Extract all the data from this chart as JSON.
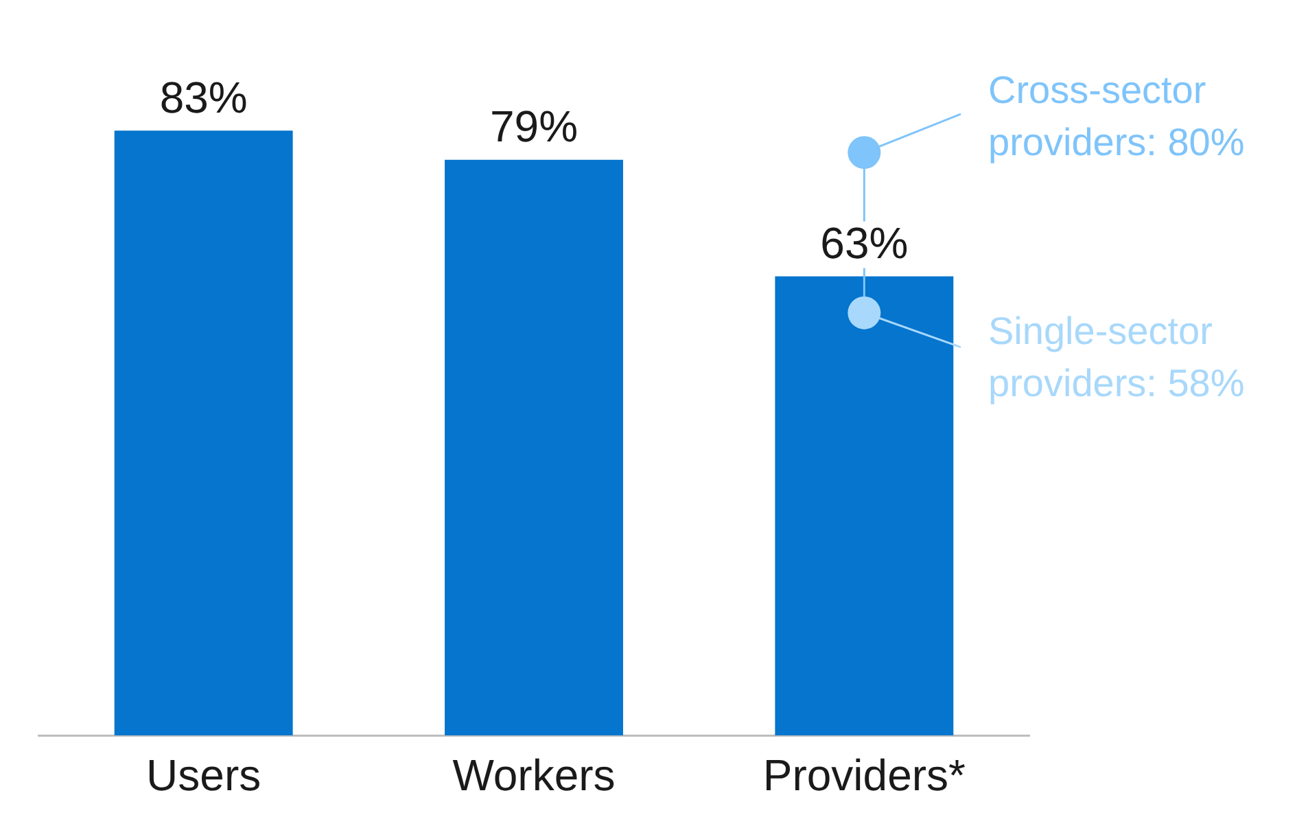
{
  "chart_data": {
    "type": "bar",
    "categories": [
      "Users",
      "Workers",
      "Providers*"
    ],
    "series": [
      {
        "color": "#0575cd",
        "values": [
          83,
          79,
          63
        ],
        "value_labels": [
          "83%",
          "79%",
          "63%"
        ]
      },
      {
        "type": "scatter",
        "x": [
          "Providers*",
          "Providers*"
        ],
        "values": [
          80,
          58
        ],
        "colors": [
          "#7fc4fa",
          "#a8d8fb"
        ]
      }
    ],
    "legend": false,
    "grid": false,
    "annotations": [
      {
        "text": "Cross-sector providers: 80%",
        "x": "Providers*",
        "y": 80
      },
      {
        "text": "Single-sector providers: 58%",
        "x": "Providers*",
        "y": 58
      }
    ]
  }
}
